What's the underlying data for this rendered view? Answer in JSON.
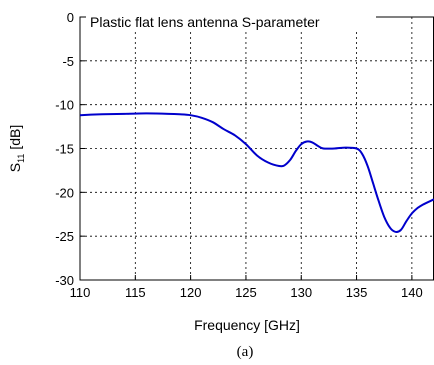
{
  "chart_data": {
    "type": "line",
    "title": "Plastic flat lens antenna S-parameter",
    "xlabel": "Frequency [GHz]",
    "ylabel_main": "S",
    "ylabel_sub": "11",
    "ylabel_unit": " [dB]",
    "caption": "(a)",
    "xlim": [
      110,
      142
    ],
    "ylim": [
      -30,
      0
    ],
    "xticks": [
      110,
      115,
      120,
      125,
      130,
      135,
      140
    ],
    "yticks": [
      0,
      -5,
      -10,
      -15,
      -20,
      -25,
      -30
    ],
    "grid": true,
    "line_color": "#0000cc",
    "series": [
      {
        "x": [
          110,
          112,
          114,
          116,
          118,
          119,
          120,
          121,
          122,
          123,
          124,
          125,
          126,
          127,
          128,
          128.5,
          129,
          129.5,
          130,
          130.5,
          131,
          131.5,
          132,
          133,
          134,
          135,
          135.5,
          136,
          136.5,
          137,
          137.5,
          138,
          138.5,
          139,
          139.5,
          140,
          140.5,
          141,
          142
        ],
        "y": [
          -11.2,
          -11.1,
          -11.05,
          -11.0,
          -11.05,
          -11.1,
          -11.2,
          -11.5,
          -12.0,
          -12.8,
          -13.5,
          -14.5,
          -15.8,
          -16.6,
          -17.0,
          -16.9,
          -16.3,
          -15.3,
          -14.5,
          -14.2,
          -14.3,
          -14.7,
          -15.0,
          -15.0,
          -14.9,
          -15.0,
          -15.6,
          -17.0,
          -19.0,
          -21.0,
          -22.8,
          -24.0,
          -24.5,
          -24.3,
          -23.3,
          -22.4,
          -21.8,
          -21.4,
          -20.8
        ]
      }
    ]
  }
}
